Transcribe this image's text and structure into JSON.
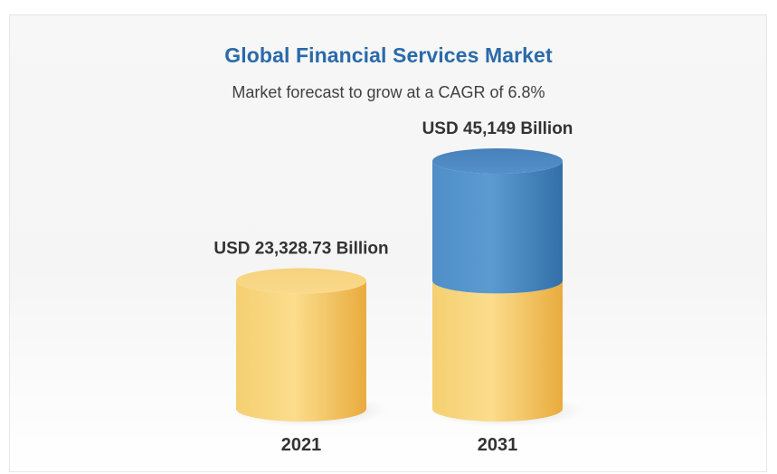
{
  "chart_data": {
    "type": "bar",
    "title": "Global Financial Services Market",
    "subtitle": "Market forecast to grow at a CAGR of 6.8%",
    "categories": [
      "2021",
      "2031"
    ],
    "values": [
      23328.73,
      45149
    ],
    "value_labels": [
      "USD 23,328.73 Billion",
      "USD 45,149 Billion"
    ],
    "base_value": 23328.73,
    "units": "USD Billion",
    "colors": {
      "base": "#f2c15f",
      "growth": "#4a86bf",
      "title": "#2a6aa9"
    }
  }
}
